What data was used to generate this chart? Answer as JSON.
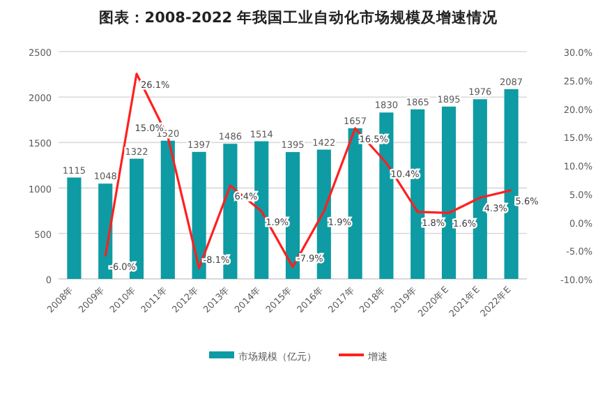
{
  "chart_data": {
    "type": "bar",
    "title": "图表：2008-2022 年我国工业自动化市场规模及增速情况",
    "categories": [
      "2008年",
      "2009年",
      "2010年",
      "2011年",
      "2012年",
      "2013年",
      "2014年",
      "2015年",
      "2016年",
      "2017年",
      "2018年",
      "2019年",
      "2020年E",
      "2021年E",
      "2022年E"
    ],
    "series": [
      {
        "name": "市场规模（亿元）",
        "color": "#0e9ba3",
        "values": [
          1115,
          1048,
          1322,
          1520,
          1397,
          1486,
          1514,
          1395,
          1422,
          1657,
          1830,
          1865,
          1895,
          1976,
          2087
        ],
        "value_labels": [
          "1115",
          "1048",
          "1322",
          "1520",
          "1397",
          "1486",
          "1514",
          "1395",
          "1422",
          "1657",
          "1830",
          "1865",
          "1895",
          "1976",
          "2087"
        ]
      },
      {
        "name": "增速",
        "type": "line",
        "axis": "y2",
        "color": "#ff2020",
        "values": [
          null,
          -6.0,
          26.1,
          15.0,
          -8.1,
          6.4,
          1.9,
          -7.9,
          1.9,
          16.5,
          10.4,
          1.8,
          1.6,
          4.3,
          5.6
        ],
        "value_labels": [
          null,
          "-6.0%",
          "26.1%",
          "15.0%",
          "-8.1%",
          "6.4%",
          "1.9%",
          "-7.9%",
          "1.9%",
          "16.5%",
          "10.4%",
          "1.8%",
          "1.6%",
          "4.3%",
          "5.6%"
        ]
      }
    ],
    "ylim": [
      0,
      2500
    ],
    "yticks": [
      0,
      500,
      1000,
      1500,
      2000,
      2500
    ],
    "y2lim": [
      -10,
      30
    ],
    "y2ticks": [
      {
        "value": -10,
        "label": "-10.0%"
      },
      {
        "value": -5,
        "label": "-5.0%"
      },
      {
        "value": 0,
        "label": "0.0%"
      },
      {
        "value": 5,
        "label": "5.0%"
      },
      {
        "value": 10,
        "label": "10.0%"
      },
      {
        "value": 15,
        "label": "15.0%"
      },
      {
        "value": 20,
        "label": "20.0%"
      },
      {
        "value": 25,
        "label": "25.0%"
      },
      {
        "value": 30,
        "label": "30.0%"
      }
    ],
    "grid": "y",
    "legend": "bottom",
    "marker": "none"
  }
}
